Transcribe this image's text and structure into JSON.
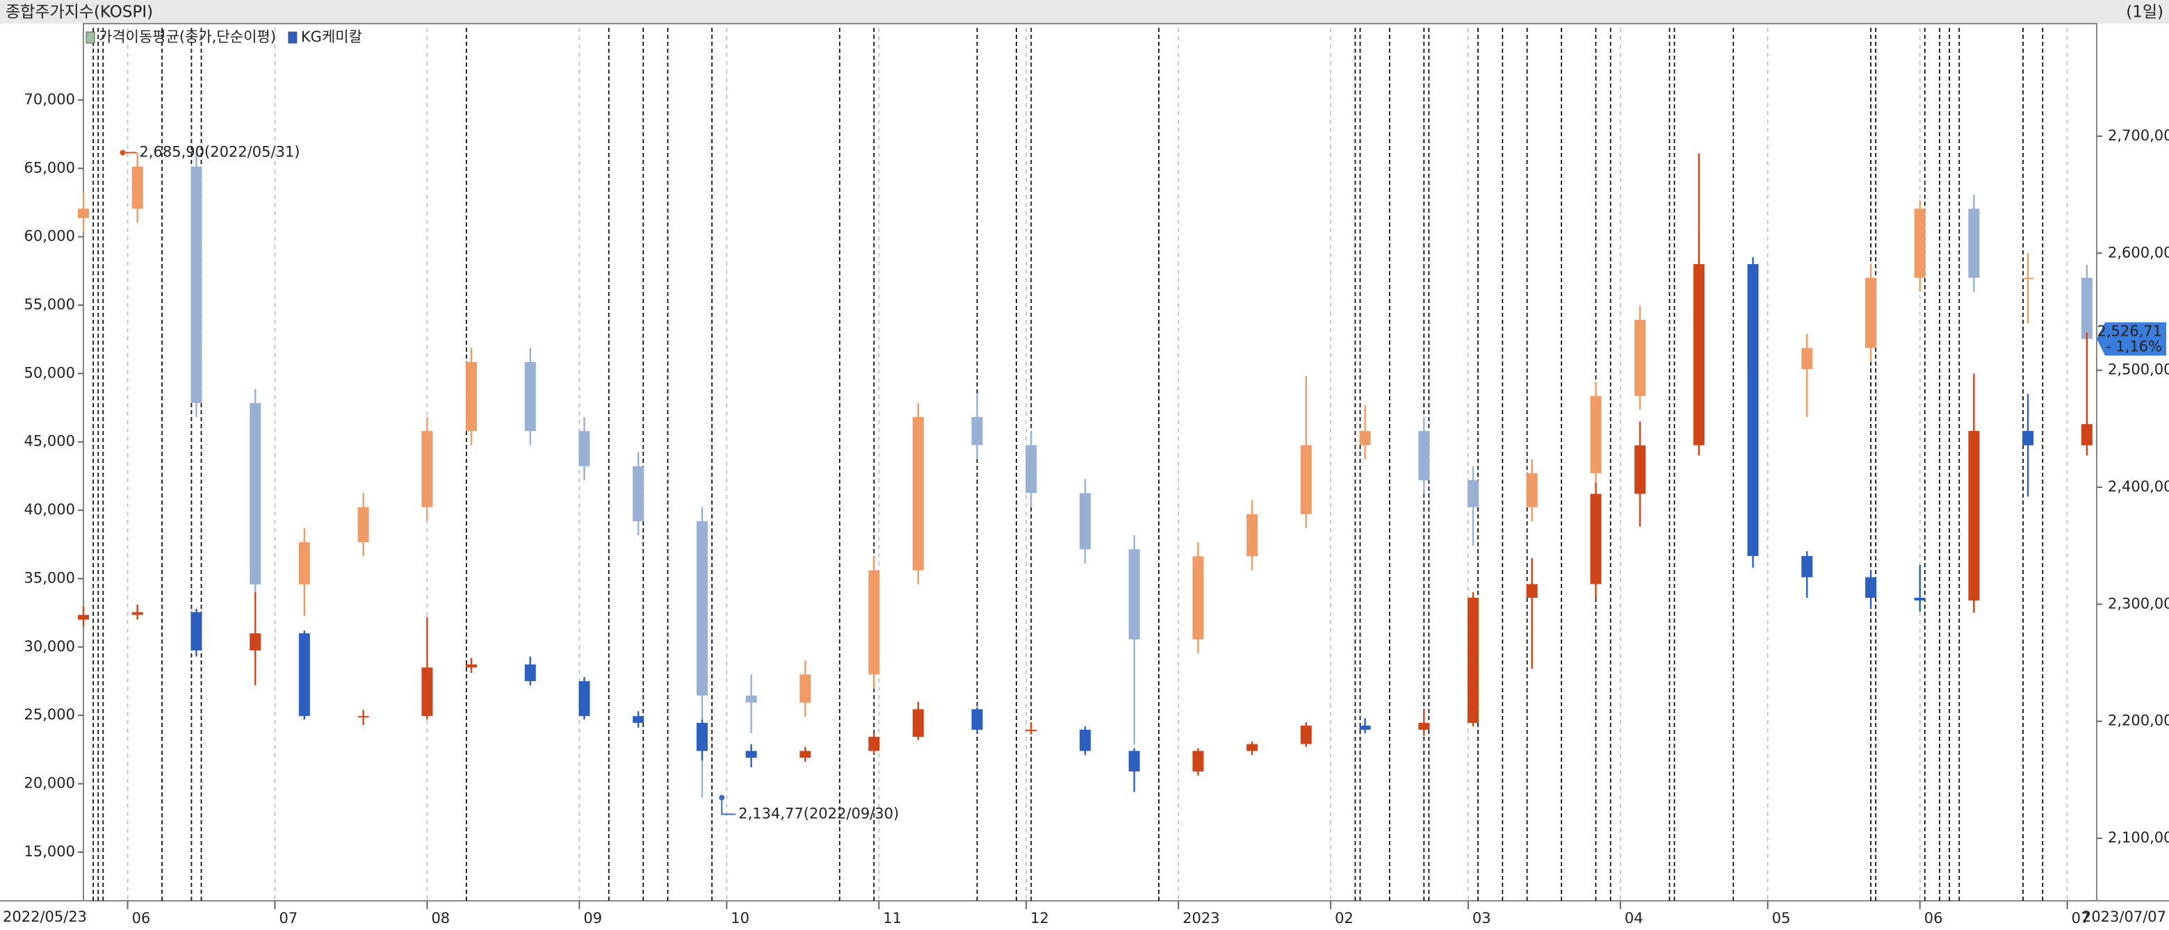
{
  "chart_data": {
    "type": "candlestick",
    "title": "종합주가지수(KOSPI)",
    "period": "(1일)",
    "indicator": "가격이동평균(종가,단순이평)",
    "xlim": [
      "2022/05/23",
      "2023/07/07"
    ],
    "xticks": [
      {
        "value": "2022/06/01",
        "label": "06"
      },
      {
        "value": "2022/07/01",
        "label": "07"
      },
      {
        "value": "2022/08/01",
        "label": "08"
      },
      {
        "value": "2022/09/01",
        "label": "09"
      },
      {
        "value": "2022/10/01",
        "label": "10"
      },
      {
        "value": "2022/11/01",
        "label": "11"
      },
      {
        "value": "2022/12/01",
        "label": "12"
      },
      {
        "value": "2023/01/01",
        "label": "2023"
      },
      {
        "value": "2023/02/01",
        "label": "02"
      },
      {
        "value": "2023/03/01",
        "label": "03"
      },
      {
        "value": "2023/04/01",
        "label": "04"
      },
      {
        "value": "2023/05/01",
        "label": "05"
      },
      {
        "value": "2023/06/01",
        "label": "06"
      },
      {
        "value": "2023/07/01",
        "label": "07"
      }
    ],
    "ylim": [
      11440,
      75280
    ],
    "yticks": [
      {
        "value": 15000,
        "label": "15,000"
      },
      {
        "value": 20000,
        "label": "20,000"
      },
      {
        "value": 25000,
        "label": "25,000"
      },
      {
        "value": 30000,
        "label": "30,000"
      },
      {
        "value": 35000,
        "label": "35,000"
      },
      {
        "value": 40000,
        "label": "40,000"
      },
      {
        "value": 45000,
        "label": "45,000"
      },
      {
        "value": 50000,
        "label": "50,000"
      },
      {
        "value": 55000,
        "label": "55,000"
      },
      {
        "value": 60000,
        "label": "60,000"
      },
      {
        "value": 65000,
        "label": "65,000"
      },
      {
        "value": 70000,
        "label": "70,000"
      }
    ],
    "y2lim": [
      2046.6,
      2792.6
    ],
    "y2ticks": [
      {
        "value": 2100,
        "label": "2,100,00"
      },
      {
        "value": 2200,
        "label": "2,200,00"
      },
      {
        "value": 2300,
        "label": "2,300,00"
      },
      {
        "value": 2400,
        "label": "2,400,00"
      },
      {
        "value": 2500,
        "label": "2,500,00"
      },
      {
        "value": 2600,
        "label": "2,600,00"
      },
      {
        "value": 2700,
        "label": "2,700,00"
      }
    ],
    "grid": true,
    "series": [
      {
        "axis": "y2",
        "up_color": "#f09a66",
        "down_color": "#98b0d4",
        "x": [
          "2022/05/23",
          "2022/06/03",
          "2022/06/15",
          "2022/06/27",
          "2022/07/07",
          "2022/07/19",
          "2022/08/01",
          "2022/08/10",
          "2022/08/22",
          "2022/09/02",
          "2022/09/13",
          "2022/09/26",
          "2022/10/06",
          "2022/10/17",
          "2022/10/31",
          "2022/11/09",
          "2022/11/21",
          "2022/12/02",
          "2022/12/13",
          "2022/12/23",
          "2023/01/05",
          "2023/01/16",
          "2023/01/27",
          "2023/02/08",
          "2023/02/20",
          "2023/03/02",
          "2023/03/14",
          "2023/03/27",
          "2023/04/05",
          "2023/04/17",
          "2023/04/28",
          "2023/05/09",
          "2023/05/22",
          "2023/06/01",
          "2023/06/12",
          "2023/06/23",
          "2023/07/05"
        ],
        "open": [
          2630,
          2638,
          2674,
          2472,
          2317,
          2353,
          2383,
          2448,
          2507,
          2448,
          2418,
          2371,
          2222,
          2216,
          2240,
          2329,
          2460,
          2436,
          2395,
          2347,
          2270,
          2341,
          2377,
          2436,
          2448,
          2406,
          2383,
          2412,
          2478,
          2543,
          2543,
          2501,
          2519,
          2579,
          2638,
          2579,
          2579
        ],
        "high": [
          2652,
          2685.9,
          2686,
          2484,
          2365,
          2395,
          2460,
          2519,
          2519,
          2460,
          2430,
          2383,
          2240,
          2252,
          2341,
          2472,
          2480,
          2448,
          2407,
          2359,
          2353,
          2389,
          2495,
          2470,
          2460,
          2418,
          2424,
          2490,
          2555,
          2620,
          2555,
          2531,
          2591,
          2645,
          2650,
          2600,
          2590
        ],
        "low": [
          2618,
          2626,
          2460,
          2305,
          2290,
          2341,
          2371,
          2436,
          2436,
          2406,
          2359,
          2134.77,
          2190,
          2204,
          2228,
          2317,
          2424,
          2383,
          2335,
          2180,
          2258,
          2329,
          2365,
          2424,
          2394,
          2350,
          2371,
          2400,
          2466,
          2480,
          2489,
          2460,
          2507,
          2567,
          2567,
          2540,
          2515
        ],
        "close": [
          2638,
          2674,
          2472,
          2317,
          2353,
          2383,
          2448,
          2507,
          2448,
          2418,
          2371,
          2222,
          2216,
          2240,
          2329,
          2460,
          2436,
          2395,
          2347,
          2270,
          2341,
          2377,
          2436,
          2448,
          2406,
          2383,
          2412,
          2478,
          2543,
          2543,
          2501,
          2519,
          2579,
          2638,
          2579,
          2579,
          2526.71
        ]
      },
      {
        "name": "KG케미칼",
        "axis": "y",
        "up_color": "#cf4419",
        "down_color": "#2c5fc0",
        "x": [
          "2022/05/23",
          "2022/06/03",
          "2022/06/15",
          "2022/06/27",
          "2022/07/07",
          "2022/07/19",
          "2022/08/01",
          "2022/08/10",
          "2022/08/22",
          "2022/09/02",
          "2022/09/13",
          "2022/09/26",
          "2022/10/06",
          "2022/10/17",
          "2022/10/31",
          "2022/11/09",
          "2022/11/21",
          "2022/12/02",
          "2022/12/13",
          "2022/12/23",
          "2023/01/05",
          "2023/01/16",
          "2023/01/27",
          "2023/02/08",
          "2023/02/20",
          "2023/03/02",
          "2023/03/14",
          "2023/03/27",
          "2023/04/05",
          "2023/04/17",
          "2023/04/28",
          "2023/05/09",
          "2023/05/22",
          "2023/06/01",
          "2023/06/12",
          "2023/06/23",
          "2023/07/05"
        ],
        "open": [
          32000,
          32350,
          32550,
          29750,
          31000,
          24950,
          24950,
          28500,
          28720,
          27500,
          24950,
          24450,
          22400,
          21900,
          22400,
          23430,
          25450,
          23950,
          23950,
          22400,
          20900,
          22400,
          22900,
          24250,
          23950,
          24450,
          33600,
          34600,
          41200,
          44750,
          58000,
          36650,
          35100,
          33600,
          33400,
          45800,
          44750
        ],
        "high": [
          33000,
          33100,
          32800,
          34000,
          31200,
          25400,
          32200,
          29200,
          29300,
          27800,
          25300,
          24700,
          22900,
          22700,
          23700,
          26000,
          25600,
          24500,
          24200,
          22600,
          22600,
          23100,
          24500,
          24800,
          25500,
          34000,
          36500,
          42000,
          46500,
          66100,
          58500,
          37000,
          35600,
          36000,
          50000,
          48500,
          53000
        ],
        "low": [
          31500,
          32000,
          29300,
          27200,
          24700,
          24300,
          24700,
          28100,
          27200,
          24700,
          24100,
          21700,
          21200,
          21600,
          22200,
          23200,
          23700,
          23600,
          22100,
          19400,
          20600,
          22100,
          22700,
          23700,
          23500,
          24200,
          28400,
          33600,
          38800,
          44000,
          35800,
          33600,
          32900,
          32600,
          32500,
          41000,
          44000
        ],
        "close": [
          32350,
          32550,
          29750,
          31000,
          24950,
          24950,
          28500,
          28720,
          27500,
          24950,
          24450,
          22400,
          21900,
          22400,
          23430,
          25450,
          23950,
          23950,
          22400,
          20900,
          22400,
          22900,
          24250,
          23950,
          24450,
          33600,
          34600,
          41200,
          44750,
          58000,
          36650,
          35100,
          33600,
          33400,
          45800,
          44750,
          46300
        ]
      }
    ],
    "event_dates": [
      "2022/05/25",
      "2022/05/26",
      "2022/05/27",
      "2022/06/08",
      "2022/06/14",
      "2022/06/16",
      "2022/08/09",
      "2022/09/07",
      "2022/09/14",
      "2022/09/19",
      "2022/09/28",
      "2022/10/24",
      "2022/10/31",
      "2022/11/21",
      "2022/11/29",
      "2022/12/02",
      "2022/12/28",
      "2023/02/06",
      "2023/02/07",
      "2023/02/13",
      "2023/02/20",
      "2023/02/21",
      "2023/03/03",
      "2023/03/08",
      "2023/03/13",
      "2023/03/20",
      "2023/03/27",
      "2023/03/30",
      "2023/04/11",
      "2023/04/12",
      "2023/04/24",
      "2023/05/22",
      "2023/05/23",
      "2023/06/02",
      "2023/06/05",
      "2023/06/07",
      "2023/06/09",
      "2023/06/22",
      "2023/06/26"
    ],
    "annotations": [
      {
        "x": "2022/05/31",
        "value": 2685.9,
        "axis": "y2",
        "label": "2,685,90(2022/05/31)",
        "color": "#d9541e"
      },
      {
        "x": "2022/09/30",
        "value": 2134.77,
        "axis": "y2",
        "label": "2,134,77(2022/09/30)",
        "color": "#3a6fc4"
      }
    ],
    "current": {
      "value": 2526.71,
      "axis": "y2",
      "label": "2,526,71",
      "change": "- 1,16%",
      "color": "#3b7ddd"
    }
  }
}
